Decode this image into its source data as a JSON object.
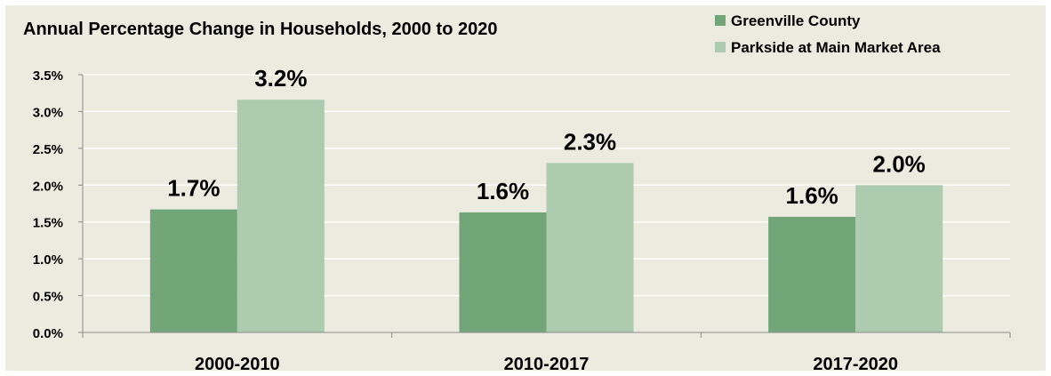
{
  "chart_data": {
    "type": "bar",
    "title": "Annual Percentage Change in Households, 2000 to 2020",
    "categories": [
      "2000-2010",
      "2010-2017",
      "2017-2020"
    ],
    "series": [
      {
        "name": "Greenville County",
        "values": [
          1.67,
          1.63,
          1.57
        ],
        "labels": [
          "1.7%",
          "1.6%",
          "1.6%"
        ],
        "color": "#72a679"
      },
      {
        "name": "Parkside at Main Market Area",
        "values": [
          3.16,
          2.3,
          2.0
        ],
        "labels": [
          "3.2%",
          "2.3%",
          "2.0%"
        ],
        "color": "#adcbaf"
      }
    ],
    "yticks": [
      "0.0%",
      "0.5%",
      "1.0%",
      "1.5%",
      "2.0%",
      "2.5%",
      "3.0%",
      "3.5%"
    ],
    "ylim": [
      0,
      3.5
    ],
    "grid": true,
    "legend": "top-right",
    "colors": {
      "background": "#ebebdf",
      "gridline": "#ffffff",
      "axis": "#8c8c8c",
      "text": "#000000"
    }
  }
}
